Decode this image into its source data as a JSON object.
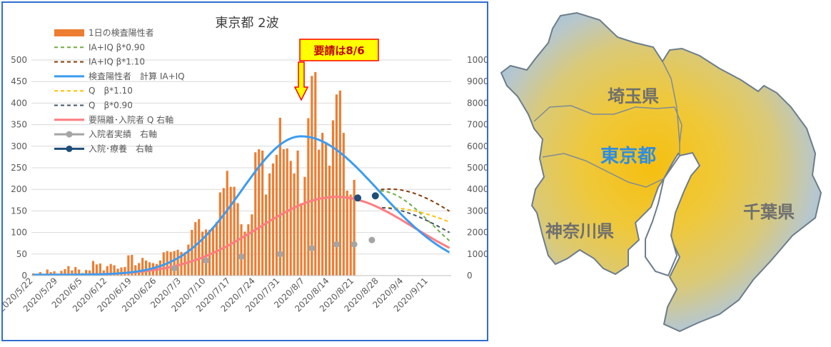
{
  "chart_data": {
    "type": "bar",
    "title": "東京都 2波",
    "yleft_ticks": [
      "0",
      "50",
      "100",
      "150",
      "200",
      "250",
      "300",
      "350",
      "400",
      "450",
      "500"
    ],
    "yright_ticks": [
      "0",
      "1000",
      "2000",
      "3000",
      "4000",
      "5000",
      "6000",
      "7000",
      "8000",
      "9000",
      "10000"
    ],
    "ylim_left": [
      0,
      500
    ],
    "ylim_right": [
      0,
      10000
    ],
    "x_tick_labels": [
      "2020/5/22",
      "2020/5/29",
      "2020/6/5",
      "2020/6/12",
      "2020/6/19",
      "2020/6/26",
      "2020/7/3",
      "2020/7/10",
      "2020/7/17",
      "2020/7/24",
      "2020/7/31",
      "2020/8/7",
      "2020/8/14",
      "2020/8/21",
      "2020/8/28",
      "2020/9/4",
      "2020/9/11"
    ],
    "x_start_date": "2020/5/22",
    "n_days": 119,
    "legend": [
      {
        "key": "bar",
        "label": "1日の検査陽性者",
        "color": "#ed7d31",
        "style": "bar"
      },
      {
        "key": "ia_090",
        "label": "IA+IQ β*0.90",
        "color": "#70ad47",
        "style": "dash"
      },
      {
        "key": "ia_110",
        "label": "IA+IQ β*1.10",
        "color": "#843c0c",
        "style": "dash"
      },
      {
        "key": "calc",
        "label": "検査陽性者　計算 IA+IQ",
        "color": "#3c9cf0",
        "style": "solid"
      },
      {
        "key": "q_110",
        "label": "Q　β*1.10",
        "color": "#ffc000",
        "style": "dash"
      },
      {
        "key": "q_090",
        "label": "Q　β*0.90",
        "color": "#44546a",
        "style": "dash"
      },
      {
        "key": "q",
        "label": "要隔離･入院者 Q 右軸",
        "color": "#ff7c80",
        "style": "solid"
      },
      {
        "key": "hosp_actual",
        "label": "入院者実績　右軸",
        "color": "#a5a5a5",
        "style": "marker"
      },
      {
        "key": "hosp_new",
        "label": "入院･療養　右軸",
        "color": "#1f4e79",
        "style": "marker"
      }
    ],
    "daily_positive": [
      5,
      3,
      8,
      2,
      14,
      8,
      10,
      5,
      11,
      15,
      22,
      12,
      20,
      14,
      6,
      13,
      12,
      34,
      26,
      28,
      12,
      22,
      27,
      24,
      16,
      19,
      20,
      47,
      48,
      24,
      29,
      41,
      35,
      31,
      29,
      27,
      35,
      54,
      57,
      55,
      57,
      60,
      55,
      54,
      72,
      106,
      124,
      131,
      102,
      107,
      106,
      111,
      124,
      193,
      203,
      243,
      206,
      206,
      168,
      119,
      102,
      119,
      142,
      286,
      293,
      290,
      188,
      237,
      260,
      280,
      366,
      293,
      295,
      266,
      237,
      290,
      168,
      229,
      365,
      463,
      472,
      292,
      331,
      309,
      255,
      360,
      420,
      429,
      331,
      197,
      188,
      222
    ],
    "hosp_actual": [
      [
        40,
        340
      ],
      [
        49,
        700
      ],
      [
        59,
        880
      ],
      [
        70,
        1000
      ],
      [
        79,
        1270
      ],
      [
        86,
        1450
      ],
      [
        91,
        1450
      ],
      [
        96,
        1650
      ]
    ],
    "hosp_new": [
      [
        92,
        3600
      ],
      [
        97,
        3700
      ]
    ],
    "annotation": "要請は8/6",
    "annotation_day": 76
  },
  "map": {
    "labels": {
      "saitama": "埼玉県",
      "tokyo": "東京都",
      "kanagawa": "神奈川県",
      "chiba": "千葉県"
    }
  }
}
